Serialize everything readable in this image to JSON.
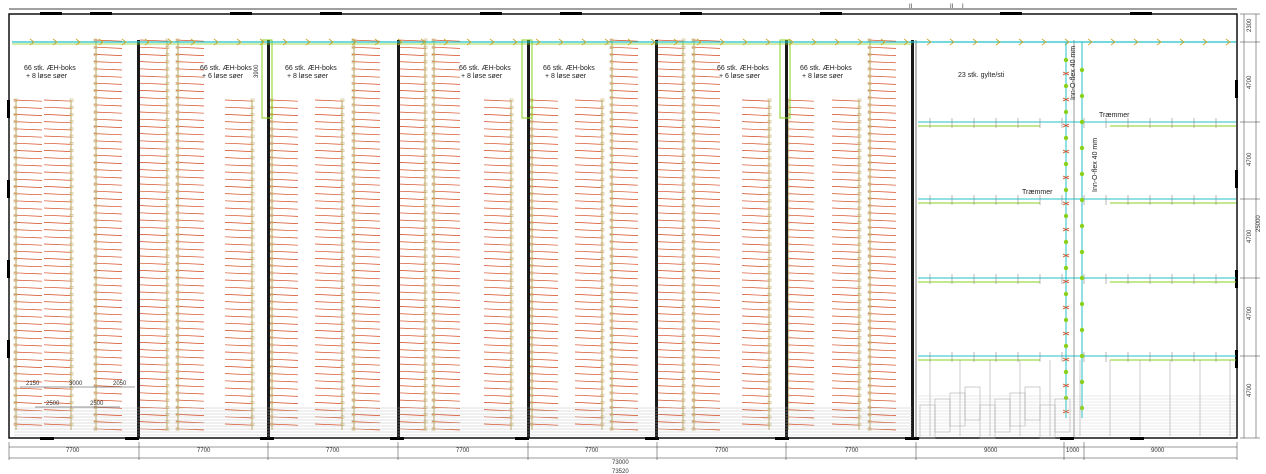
{
  "colors": {
    "wall": "#000000",
    "pipe_cyan": "#21c2c8",
    "pipe_green": "#8ad11b",
    "stall_red": "#d5481e",
    "stall_tan": "#c9b47a",
    "grid": "#9a9a9a"
  },
  "icons": [
    "valve-arrow-icon",
    "sprinkler-icon",
    "drinker-icon"
  ],
  "box_labels": [
    {
      "line1": "66 stk. ÆH-boks",
      "line2": "+ 8 løse søer"
    },
    {
      "line1": "66 stk. ÆH-boks",
      "line2": "+ 6 løse søer"
    },
    {
      "line1": "66 stk. ÆH-boks",
      "line2": "+ 8 løse søer"
    },
    {
      "line1": "66 stk. ÆH-boks",
      "line2": "+ 8 løse søer"
    },
    {
      "line1": "66 stk. ÆH-boks",
      "line2": "+ 8 løse søer"
    },
    {
      "line1": "66 stk. ÆH-boks",
      "line2": "+ 6 løse søer"
    },
    {
      "line1": "66 stk. ÆH-boks",
      "line2": "+ 8 løse søer"
    }
  ],
  "pen_label": "23 stk. gylte/sti",
  "trimmer_labels": [
    "Træmmer",
    "Træmmer"
  ],
  "pipe_labels": [
    "Inn-O-flex 40 mm",
    "Inn-O-flex 40 mm"
  ],
  "small_dim": "3900",
  "left_detail_dims": [
    "2150",
    "3000",
    "2050",
    "2500",
    "2500"
  ],
  "bottom_dims": [
    "7700",
    "7700",
    "7700",
    "7700",
    "7700",
    "7700",
    "7700",
    "9000",
    "1000",
    "9000"
  ],
  "total_dims": [
    "73000",
    "73520"
  ],
  "right_dims": [
    "2300",
    "4700",
    "4700",
    "4700",
    "4700",
    "4700"
  ],
  "right_total": "25000",
  "top_marks": [
    "II",
    "II",
    "I"
  ]
}
